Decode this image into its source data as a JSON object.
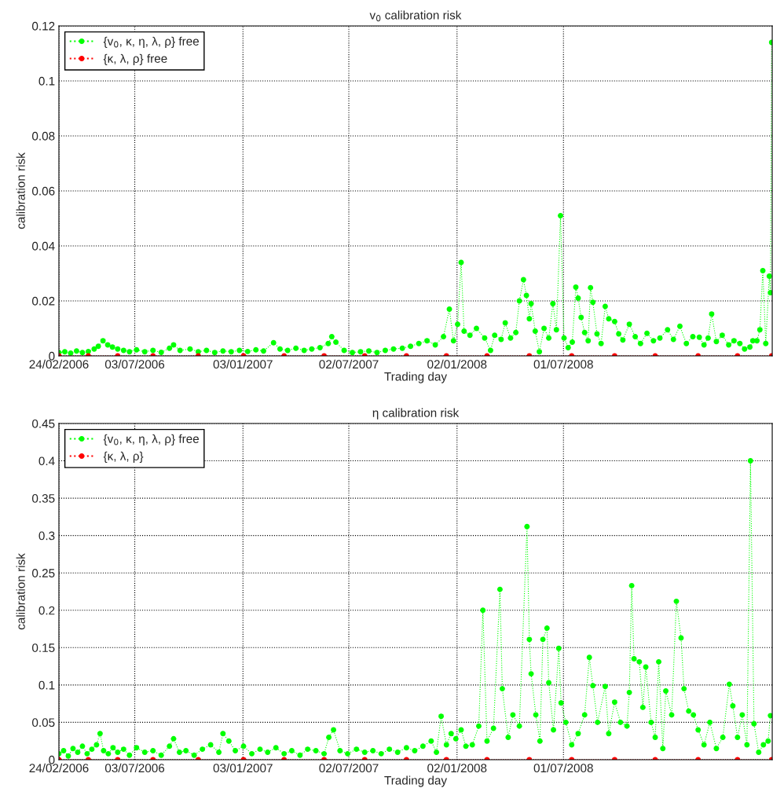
{
  "chart_data": [
    {
      "type": "line",
      "title": "v$_{0}$ calibration risk",
      "xlabel": "Trading day",
      "ylabel": "calibration risk",
      "xlim": [
        "2006-02-24",
        "2009-06-21"
      ],
      "xticks": [
        {
          "value": "2006-02-24",
          "label": "24/02/2006"
        },
        {
          "value": "2006-07-03",
          "label": "03/07/2006"
        },
        {
          "value": "2007-01-03",
          "label": "03/01/2007"
        },
        {
          "value": "2007-07-02",
          "label": "02/07/2007"
        },
        {
          "value": "2008-01-02",
          "label": "02/01/2008"
        },
        {
          "value": "2008-07-01",
          "label": "01/07/2008"
        }
      ],
      "ylim": [
        0,
        0.12
      ],
      "yticks": [
        0,
        0.02,
        0.04,
        0.06,
        0.08,
        0.1,
        0.12
      ],
      "grid": true,
      "legend": "top left",
      "marker": "circle",
      "line_style": "dotted",
      "series": [
        {
          "name": "{v$_{0}$, κ, η, λ, ρ} free",
          "color": "#00ff00",
          "x": [
            "2006-02-24",
            "2006-03-06",
            "2006-03-16",
            "2006-03-26",
            "2006-04-05",
            "2006-04-15",
            "2006-04-25",
            "2006-05-02",
            "2006-05-10",
            "2006-05-18",
            "2006-05-26",
            "2006-06-04",
            "2006-06-14",
            "2006-06-24",
            "2006-07-06",
            "2006-07-20",
            "2006-08-03",
            "2006-08-17",
            "2006-08-31",
            "2006-09-07",
            "2006-09-18",
            "2006-10-05",
            "2006-10-19",
            "2006-11-02",
            "2006-11-16",
            "2006-11-30",
            "2006-12-14",
            "2006-12-28",
            "2007-01-11",
            "2007-01-25",
            "2007-02-07",
            "2007-02-24",
            "2007-03-07",
            "2007-03-20",
            "2007-04-03",
            "2007-04-17",
            "2007-04-30",
            "2007-05-14",
            "2007-05-28",
            "2007-06-03",
            "2007-06-10",
            "2007-06-24",
            "2007-07-08",
            "2007-07-22",
            "2007-08-05",
            "2007-08-19",
            "2007-09-02",
            "2007-09-16",
            "2007-10-01",
            "2007-10-15",
            "2007-10-29",
            "2007-11-12",
            "2007-11-26",
            "2007-12-10",
            "2007-12-20",
            "2007-12-27",
            "2008-01-03",
            "2008-01-09",
            "2008-01-14",
            "2008-01-24",
            "2008-02-04",
            "2008-02-18",
            "2008-02-28",
            "2008-03-06",
            "2008-03-17",
            "2008-03-24",
            "2008-04-02",
            "2008-04-11",
            "2008-04-17",
            "2008-04-24",
            "2008-04-29",
            "2008-05-04",
            "2008-05-07",
            "2008-05-14",
            "2008-05-21",
            "2008-05-29",
            "2008-06-06",
            "2008-06-13",
            "2008-06-19",
            "2008-06-26",
            "2008-07-02",
            "2008-07-09",
            "2008-07-16",
            "2008-07-22",
            "2008-07-26",
            "2008-07-31",
            "2008-08-06",
            "2008-08-12",
            "2008-08-16",
            "2008-08-20",
            "2008-08-27",
            "2008-09-03",
            "2008-09-10",
            "2008-09-16",
            "2008-09-26",
            "2008-10-03",
            "2008-10-10",
            "2008-10-21",
            "2008-10-31",
            "2008-11-09",
            "2008-11-20",
            "2008-12-01",
            "2008-12-12",
            "2008-12-25",
            "2009-01-04",
            "2009-01-15",
            "2009-01-26",
            "2009-02-06",
            "2009-02-17",
            "2009-02-25",
            "2009-03-04",
            "2009-03-10",
            "2009-03-18",
            "2009-03-28",
            "2009-04-08",
            "2009-04-17",
            "2009-04-27",
            "2009-05-05",
            "2009-05-14",
            "2009-05-19",
            "2009-05-26",
            "2009-05-31",
            "2009-06-05",
            "2009-06-10",
            "2009-06-16",
            "2009-06-18",
            "2009-06-20"
          ],
          "values": [
            0.0012,
            0.0015,
            0.001,
            0.0018,
            0.0012,
            0.0016,
            0.0025,
            0.0035,
            0.0055,
            0.004,
            0.0032,
            0.0025,
            0.002,
            0.0015,
            0.0022,
            0.0015,
            0.002,
            0.0013,
            0.0028,
            0.004,
            0.002,
            0.0025,
            0.0015,
            0.002,
            0.0012,
            0.0018,
            0.0015,
            0.002,
            0.0016,
            0.0022,
            0.0018,
            0.0048,
            0.0025,
            0.002,
            0.0028,
            0.002,
            0.0025,
            0.003,
            0.0045,
            0.007,
            0.005,
            0.002,
            0.0012,
            0.0015,
            0.0018,
            0.0012,
            0.002,
            0.0025,
            0.0028,
            0.0035,
            0.0045,
            0.0055,
            0.004,
            0.007,
            0.017,
            0.0055,
            0.0115,
            0.034,
            0.009,
            0.0075,
            0.01,
            0.0065,
            0.002,
            0.0075,
            0.006,
            0.012,
            0.0065,
            0.0085,
            0.02,
            0.0277,
            0.022,
            0.0135,
            0.019,
            0.009,
            0.0015,
            0.01,
            0.0065,
            0.019,
            0.0095,
            0.051,
            0.0065,
            0.003,
            0.005,
            0.025,
            0.021,
            0.014,
            0.0085,
            0.0055,
            0.0248,
            0.0195,
            0.008,
            0.0045,
            0.018,
            0.0135,
            0.0125,
            0.008,
            0.0058,
            0.0115,
            0.007,
            0.0045,
            0.0082,
            0.0055,
            0.0065,
            0.0095,
            0.006,
            0.0108,
            0.0045,
            0.007,
            0.0068,
            0.004,
            0.0065,
            0.0152,
            0.0052,
            0.0075,
            0.004,
            0.0055,
            0.0045,
            0.0025,
            0.0032,
            0.0055,
            0.0055,
            0.0095,
            0.031,
            0.0045,
            0.029,
            0.023,
            0.114
          ]
        },
        {
          "name": "{κ, λ, ρ} free",
          "color": "#ff0000",
          "x": [
            "2006-02-24",
            "2006-04-15",
            "2006-06-04",
            "2006-08-03",
            "2006-10-19",
            "2007-01-04",
            "2007-03-14",
            "2007-05-21",
            "2007-07-29",
            "2007-10-08",
            "2007-12-15",
            "2008-02-22",
            "2008-05-04",
            "2008-07-15",
            "2008-09-26",
            "2008-12-04",
            "2009-02-15",
            "2009-04-23",
            "2009-06-20"
          ],
          "values": [
            0,
            0,
            0,
            0,
            0,
            0,
            0,
            0,
            0,
            0,
            0,
            0,
            0,
            0,
            0,
            0,
            0,
            0,
            0
          ]
        }
      ]
    },
    {
      "type": "line",
      "title": "η calibration risk",
      "xlabel": "Trading day",
      "ylabel": "calibration risk",
      "xlim": [
        "2006-02-24",
        "2009-06-21"
      ],
      "xticks": [
        {
          "value": "2006-02-24",
          "label": "24/02/2006"
        },
        {
          "value": "2006-07-03",
          "label": "03/07/2006"
        },
        {
          "value": "2007-01-03",
          "label": "03/01/2007"
        },
        {
          "value": "2007-07-02",
          "label": "02/07/2007"
        },
        {
          "value": "2008-01-02",
          "label": "02/01/2008"
        },
        {
          "value": "2008-07-01",
          "label": "01/07/2008"
        }
      ],
      "ylim": [
        0,
        0.45
      ],
      "yticks": [
        0,
        0.05,
        0.1,
        0.15,
        0.2,
        0.25,
        0.3,
        0.35,
        0.4,
        0.45
      ],
      "grid": true,
      "legend": "top left",
      "marker": "circle",
      "line_style": "dotted",
      "series": [
        {
          "name": "{v$_{0}$, κ, η, λ, ρ} free",
          "color": "#00ff00",
          "x": [
            "2006-02-24",
            "2006-03-04",
            "2006-03-12",
            "2006-03-20",
            "2006-03-28",
            "2006-04-05",
            "2006-04-13",
            "2006-04-21",
            "2006-04-29",
            "2006-05-05",
            "2006-05-11",
            "2006-05-19",
            "2006-05-27",
            "2006-06-04",
            "2006-06-14",
            "2006-06-24",
            "2006-07-06",
            "2006-07-20",
            "2006-08-03",
            "2006-08-17",
            "2006-08-31",
            "2006-09-07",
            "2006-09-17",
            "2006-09-28",
            "2006-10-12",
            "2006-10-26",
            "2006-11-09",
            "2006-11-23",
            "2006-11-30",
            "2006-12-10",
            "2006-12-21",
            "2007-01-04",
            "2007-01-18",
            "2007-02-01",
            "2007-02-14",
            "2007-02-28",
            "2007-03-14",
            "2007-03-27",
            "2007-04-10",
            "2007-04-23",
            "2007-05-07",
            "2007-05-21",
            "2007-05-29",
            "2007-06-06",
            "2007-06-17",
            "2007-06-30",
            "2007-07-15",
            "2007-07-29",
            "2007-08-12",
            "2007-08-26",
            "2007-09-09",
            "2007-09-23",
            "2007-10-08",
            "2007-10-22",
            "2007-11-05",
            "2007-11-19",
            "2007-11-28",
            "2007-12-06",
            "2007-12-15",
            "2007-12-23",
            "2007-12-31",
            "2008-01-09",
            "2008-01-17",
            "2008-01-28",
            "2008-02-08",
            "2008-02-15",
            "2008-02-22",
            "2008-03-04",
            "2008-03-15",
            "2008-03-19",
            "2008-03-29",
            "2008-04-06",
            "2008-04-17",
            "2008-04-30",
            "2008-05-04",
            "2008-05-07",
            "2008-05-15",
            "2008-05-22",
            "2008-05-27",
            "2008-06-03",
            "2008-06-06",
            "2008-06-14",
            "2008-06-23",
            "2008-06-27",
            "2008-07-05",
            "2008-07-15",
            "2008-07-26",
            "2008-08-06",
            "2008-08-14",
            "2008-08-20",
            "2008-08-28",
            "2008-09-10",
            "2008-09-16",
            "2008-09-26",
            "2008-10-06",
            "2008-10-17",
            "2008-10-21",
            "2008-10-25",
            "2008-10-29",
            "2008-11-07",
            "2008-11-13",
            "2008-11-18",
            "2008-11-27",
            "2008-12-04",
            "2008-12-10",
            "2008-12-17",
            "2008-12-22",
            "2009-01-01",
            "2009-01-09",
            "2009-01-17",
            "2009-01-22",
            "2009-01-30",
            "2009-02-07",
            "2009-02-15",
            "2009-02-25",
            "2009-03-07",
            "2009-03-18",
            "2009-03-29",
            "2009-04-09",
            "2009-04-15",
            "2009-04-23",
            "2009-05-01",
            "2009-05-09",
            "2009-05-15",
            "2009-05-21",
            "2009-05-29",
            "2009-06-06",
            "2009-06-14",
            "2009-06-18"
          ],
          "values": [
            0.008,
            0.012,
            0.005,
            0.015,
            0.01,
            0.018,
            0.008,
            0.014,
            0.02,
            0.035,
            0.012,
            0.008,
            0.016,
            0.01,
            0.014,
            0.006,
            0.016,
            0.01,
            0.012,
            0.006,
            0.018,
            0.028,
            0.01,
            0.012,
            0.006,
            0.014,
            0.02,
            0.01,
            0.035,
            0.025,
            0.012,
            0.018,
            0.008,
            0.014,
            0.01,
            0.016,
            0.008,
            0.012,
            0.006,
            0.014,
            0.012,
            0.008,
            0.03,
            0.04,
            0.012,
            0.008,
            0.014,
            0.01,
            0.012,
            0.008,
            0.014,
            0.01,
            0.016,
            0.012,
            0.018,
            0.025,
            0.01,
            0.058,
            0.02,
            0.035,
            0.028,
            0.04,
            0.018,
            0.02,
            0.045,
            0.2,
            0.025,
            0.042,
            0.228,
            0.095,
            0.03,
            0.06,
            0.045,
            0.312,
            0.161,
            0.115,
            0.06,
            0.025,
            0.161,
            0.176,
            0.103,
            0.04,
            0.149,
            0.076,
            0.05,
            0.02,
            0.035,
            0.06,
            0.137,
            0.099,
            0.05,
            0.098,
            0.035,
            0.077,
            0.05,
            0.045,
            0.09,
            0.233,
            0.135,
            0.131,
            0.07,
            0.124,
            0.05,
            0.03,
            0.131,
            0.015,
            0.092,
            0.06,
            0.212,
            0.163,
            0.095,
            0.065,
            0.06,
            0.04,
            0.02,
            0.05,
            0.015,
            0.03,
            0.101,
            0.072,
            0.03,
            0.06,
            0.02,
            0.4,
            0.048,
            0.01,
            0.02,
            0.025,
            0.059
          ]
        },
        {
          "name": "{κ, λ, ρ}",
          "color": "#ff0000",
          "x": [
            "2006-02-24",
            "2006-04-15",
            "2006-06-04",
            "2006-08-03",
            "2006-10-19",
            "2007-01-04",
            "2007-03-14",
            "2007-05-21",
            "2007-07-29",
            "2007-10-08",
            "2007-12-15",
            "2008-02-22",
            "2008-05-04",
            "2008-07-15",
            "2008-09-26",
            "2008-12-04",
            "2009-02-15",
            "2009-04-23",
            "2009-06-20"
          ],
          "values": [
            0,
            0,
            0,
            0,
            0,
            0,
            0,
            0,
            0,
            0,
            0,
            0,
            0,
            0,
            0,
            0,
            0,
            0,
            0
          ]
        }
      ]
    }
  ]
}
